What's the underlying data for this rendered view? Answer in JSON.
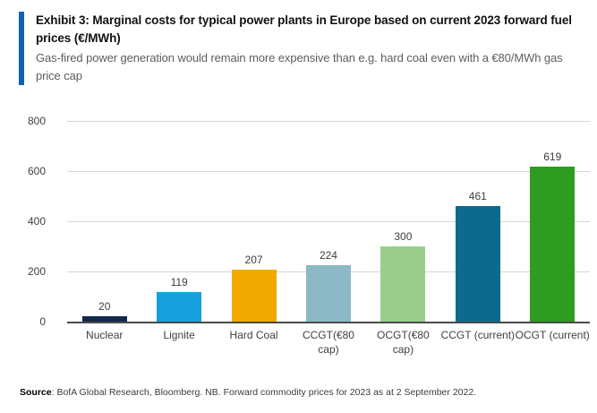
{
  "header": {
    "title": "Exhibit 3: Marginal costs for typical power plants in Europe based on current 2023 forward fuel prices (€/MWh)",
    "subtitle": "Gas-fired power generation would remain more expensive than e.g. hard coal even with a €80/MWh gas price cap",
    "accent_color": "#1262B3"
  },
  "chart_data": {
    "type": "bar",
    "title": "Marginal costs for typical power plants in Europe based on current 2023 forward fuel prices (€/MWh)",
    "categories": [
      "Nuclear",
      "Lignite",
      "Hard Coal",
      "CCGT(€80 cap)",
      "OCGT(€80 cap)",
      "CCGT (current)",
      "OCGT (current)"
    ],
    "values": [
      20,
      119,
      207,
      224,
      300,
      461,
      619
    ],
    "bar_colors": [
      "#13294B",
      "#18A0DC",
      "#F2A900",
      "#8DB8C6",
      "#9BCE8D",
      "#0E6A8C",
      "#2E9B21"
    ],
    "xlabel": "",
    "ylabel": "",
    "ylim": [
      0,
      800
    ],
    "yticks": [
      0,
      200,
      400,
      600,
      800
    ],
    "grid": true,
    "legend": false,
    "data_labels": true,
    "gridline_color": "#d6d6d6",
    "baseline_color": "#4a4a4a"
  },
  "footer": {
    "source_label": "Source",
    "source_text": ": BofA Global Research, Bloomberg. NB. Forward commodity prices for 2023 as at 2 September 2022."
  }
}
